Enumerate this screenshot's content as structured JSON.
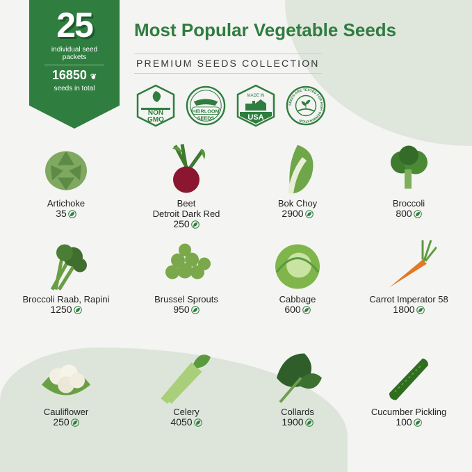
{
  "banner": {
    "packets": "25",
    "packets_label": "individual seed packets",
    "seeds_total": "16850",
    "seeds_label": "seeds in total"
  },
  "title": "Most Popular Vegetable Seeds",
  "subtitle": "PREMIUM SEEDS COLLECTION",
  "badges": [
    {
      "icon": "non-gmo-badge",
      "l1": "NON",
      "l2": "GMO"
    },
    {
      "icon": "heirloom-badge",
      "l1": "HEIRLOOM",
      "l2": "SEEDS"
    },
    {
      "icon": "made-in-usa-badge",
      "l1": "MADE IN",
      "l2": "USA"
    },
    {
      "icon": "germination-badge",
      "l1": "SEEDS ARE TESTED FOR HIGH GERMINATION",
      "l2": ""
    }
  ],
  "colors": {
    "brand_green": "#2f7d3f",
    "background": "#f4f4f2",
    "blob": "#dde5da"
  },
  "vegetables": [
    {
      "name": "Artichoke",
      "sub": "",
      "count": "35"
    },
    {
      "name": "Beet",
      "sub": "Detroit Dark Red",
      "count": "250"
    },
    {
      "name": "Bok Choy",
      "sub": "",
      "count": "2900"
    },
    {
      "name": "Broccoli",
      "sub": "",
      "count": "800"
    },
    {
      "name": "Broccoli Raab, Rapini",
      "sub": "",
      "count": "1250"
    },
    {
      "name": "Brussel Sprouts",
      "sub": "",
      "count": "950"
    },
    {
      "name": "Cabbage",
      "sub": "",
      "count": "600"
    },
    {
      "name": "Carrot Imperator 58",
      "sub": "",
      "count": "1800"
    },
    {
      "name": "Cauliflower",
      "sub": "",
      "count": "250"
    },
    {
      "name": "Celery",
      "sub": "",
      "count": "4050"
    },
    {
      "name": "Collards",
      "sub": "",
      "count": "1900"
    },
    {
      "name": "Cucumber Pickling",
      "sub": "",
      "count": "100"
    }
  ]
}
